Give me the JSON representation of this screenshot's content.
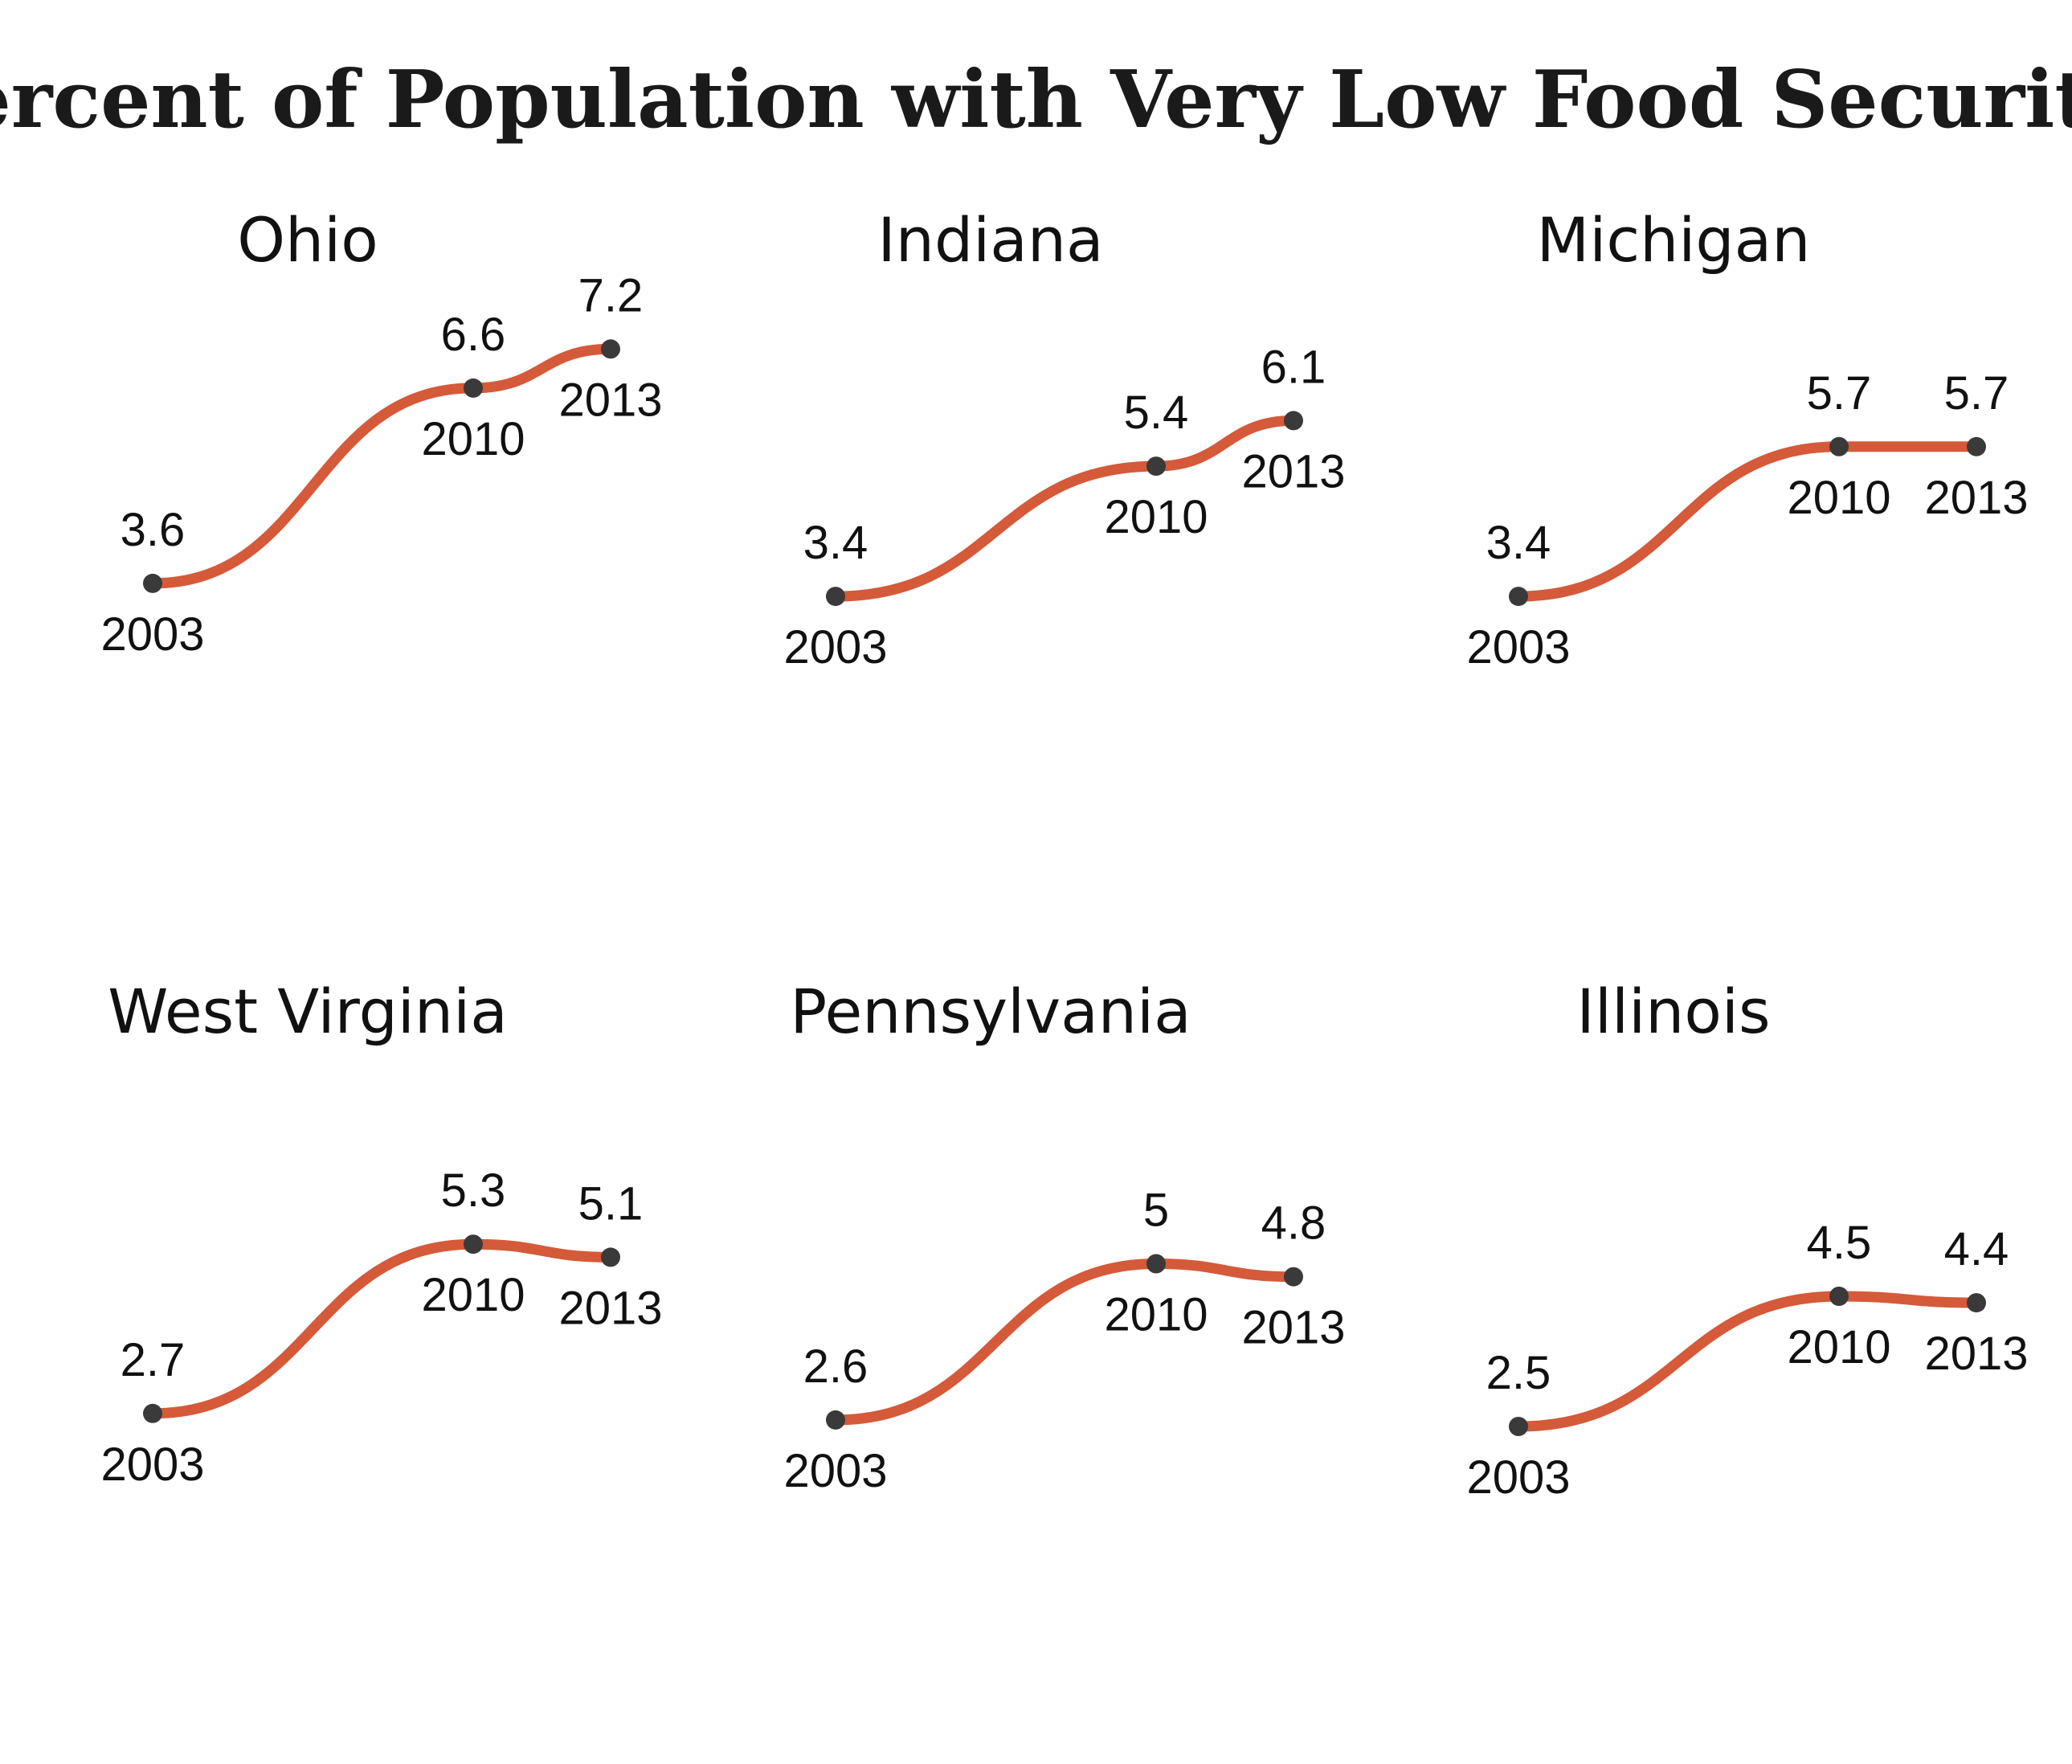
{
  "title": "Percent of Population with Very Low Food Security",
  "style": {
    "line_color": "#d45a3a",
    "point_color": "#3a3a3a",
    "text_color": "#111111",
    "background": "#ffffff"
  },
  "chart_data": [
    {
      "type": "line",
      "title": "Ohio",
      "x": [
        "2003",
        "2010",
        "2013"
      ],
      "values": [
        3.6,
        6.6,
        7.2
      ],
      "ylim": [
        2.5,
        7.5
      ]
    },
    {
      "type": "line",
      "title": "Indiana",
      "x": [
        "2003",
        "2010",
        "2013"
      ],
      "values": [
        3.4,
        5.4,
        6.1
      ],
      "ylim": [
        2.5,
        7.5
      ]
    },
    {
      "type": "line",
      "title": "Michigan",
      "x": [
        "2003",
        "2010",
        "2013"
      ],
      "values": [
        3.4,
        5.7,
        5.7
      ],
      "ylim": [
        2.5,
        7.5
      ]
    },
    {
      "type": "line",
      "title": "West Virginia",
      "x": [
        "2003",
        "2010",
        "2013"
      ],
      "values": [
        2.7,
        5.3,
        5.1
      ],
      "ylim": [
        2.5,
        7.5
      ]
    },
    {
      "type": "line",
      "title": "Pennsylvania",
      "x": [
        "2003",
        "2010",
        "2013"
      ],
      "values": [
        2.6,
        5,
        4.8
      ],
      "ylim": [
        2.5,
        7.5
      ]
    },
    {
      "type": "line",
      "title": "Illinois",
      "x": [
        "2003",
        "2010",
        "2013"
      ],
      "values": [
        2.5,
        4.5,
        4.4
      ],
      "ylim": [
        2.5,
        7.5
      ]
    }
  ]
}
